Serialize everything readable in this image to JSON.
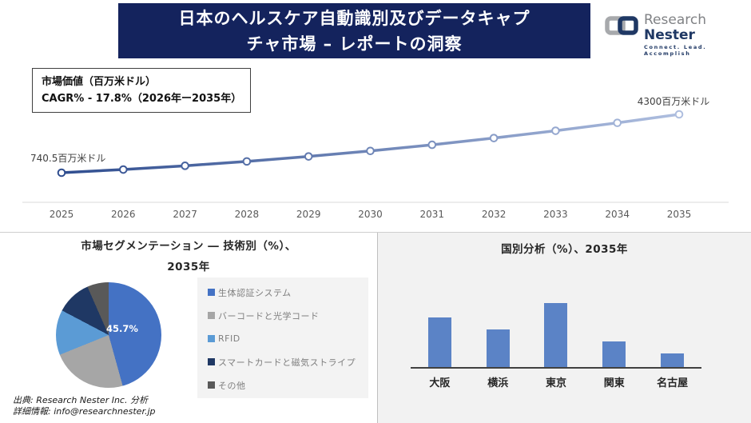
{
  "header": {
    "title_line1": "日本のヘルスケア自動識別及びデータキャプ",
    "title_line2": "チャ市場 – レポートの洞察"
  },
  "logo": {
    "name_part1": "Research",
    "name_part2": "Nester",
    "tagline": "Connect. Lead. Accomplish"
  },
  "info_box": {
    "line1": "市場価値（百万米ドル）",
    "line2": "CAGR% - 17.8%（2026年ー2035年）"
  },
  "colors": {
    "banner_bg": "#14235D",
    "brand_navy": "#1F3864",
    "brand_gray": "#A7A9AC",
    "panel_bg": "#F2F2F2"
  },
  "chart_data": [
    {
      "type": "line",
      "title": "市場価値（百万米ドル）",
      "x": [
        2025,
        2026,
        2027,
        2028,
        2029,
        2030,
        2031,
        2032,
        2033,
        2034,
        2035
      ],
      "start_value": 740.5,
      "end_value": 4300,
      "start_label": "740.5百万米ドル",
      "end_label": "4300百万米ドル",
      "cagr_note": "CAGR% - 17.8%（2026年ー2035年）",
      "line_color_start": "#2F4D8F",
      "line_color_end": "#AEBEDF",
      "grid": "off",
      "legend": "none"
    },
    {
      "type": "pie",
      "title_line1": "市場セグメンテーション ― 技術別（%）、",
      "title_line2": "2035年",
      "labels": [
        "生体認証システム",
        "バーコードと光学コード",
        "RFID",
        "スマートカードと磁気ストライプ",
        "その他"
      ],
      "values": [
        45.7,
        23.2,
        13.8,
        10.7,
        6.6
      ],
      "colors": [
        "#4472C4",
        "#A6A6A6",
        "#5B9BD5",
        "#1F3864",
        "#595959"
      ],
      "shown_label": "45.7%",
      "legend_position": "right"
    },
    {
      "type": "bar",
      "title": "国別分析（%）、2035年",
      "categories": [
        "大阪",
        "横浜",
        "東京",
        "関東",
        "名古屋"
      ],
      "values": [
        25,
        19,
        32,
        13,
        7
      ],
      "bar_color": "#5B83C6",
      "xlabel": "",
      "ylabel": "",
      "grid": "off"
    }
  ],
  "footer": {
    "line1": "出典: Research Nester Inc. 分析",
    "line2": "詳細情報: info@researchnester.jp"
  }
}
